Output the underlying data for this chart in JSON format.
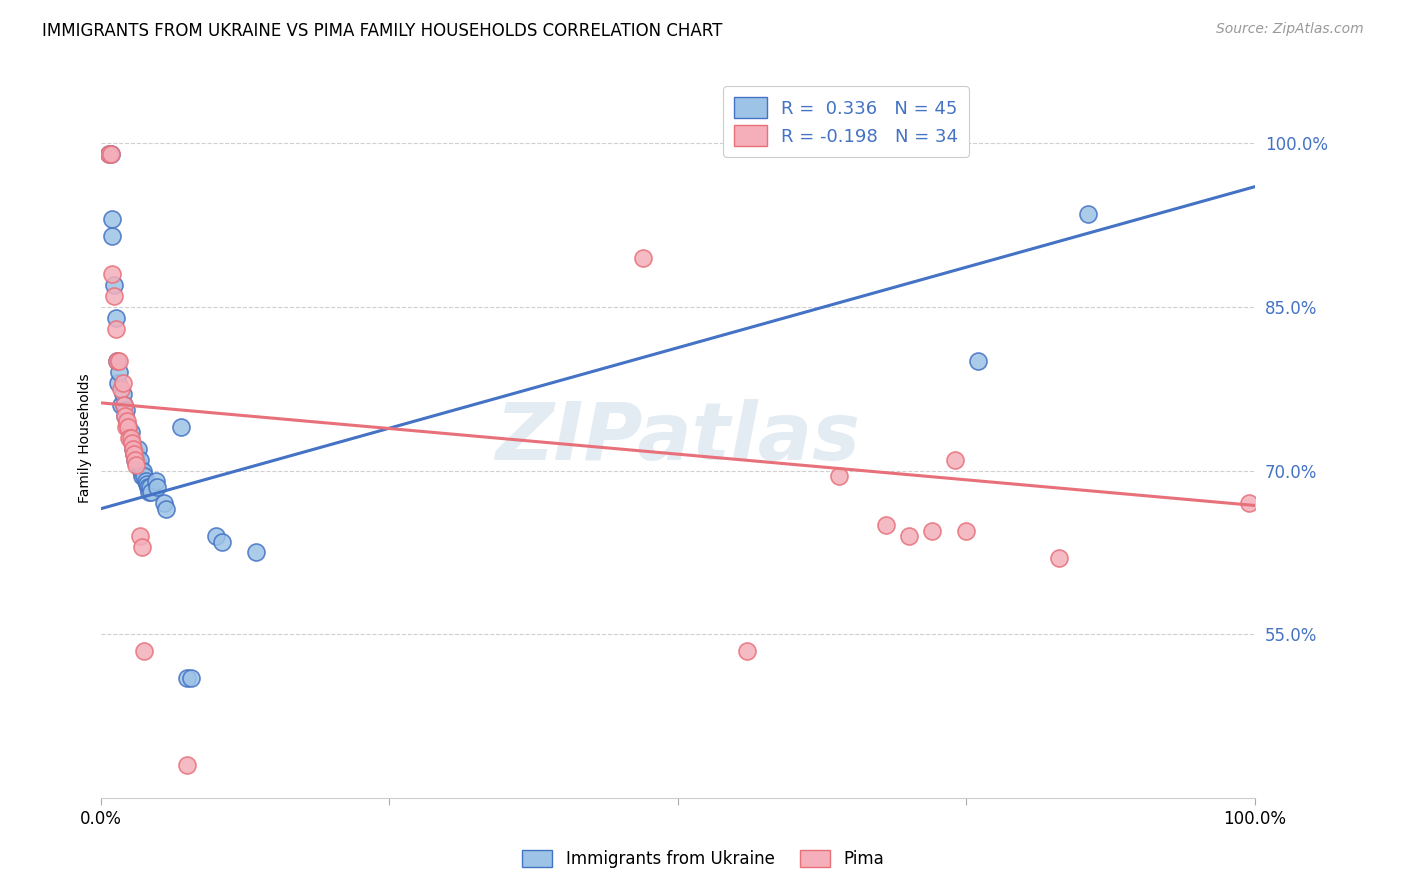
{
  "title": "IMMIGRANTS FROM UKRAINE VS PIMA FAMILY HOUSEHOLDS CORRELATION CHART",
  "source": "Source: ZipAtlas.com",
  "ylabel": "Family Households",
  "ytick_labels": [
    "55.0%",
    "70.0%",
    "85.0%",
    "100.0%"
  ],
  "ytick_values": [
    0.55,
    0.7,
    0.85,
    1.0
  ],
  "xlim": [
    0.0,
    1.0
  ],
  "ylim": [
    0.4,
    1.06
  ],
  "legend_line1": "R =  0.336   N = 45",
  "legend_line2": "R = -0.198   N = 34",
  "watermark": "ZIPatlas",
  "blue_color": "#4472C4",
  "pink_color": "#E8707A",
  "blue_fill": "#9DC3E6",
  "pink_fill": "#F4AFBA",
  "blue_scatter": [
    [
      0.007,
      0.99
    ],
    [
      0.009,
      0.99
    ],
    [
      0.01,
      0.93
    ],
    [
      0.01,
      0.915
    ],
    [
      0.012,
      0.87
    ],
    [
      0.013,
      0.84
    ],
    [
      0.014,
      0.8
    ],
    [
      0.015,
      0.78
    ],
    [
      0.016,
      0.79
    ],
    [
      0.018,
      0.76
    ],
    [
      0.019,
      0.77
    ],
    [
      0.02,
      0.76
    ],
    [
      0.021,
      0.75
    ],
    [
      0.022,
      0.755
    ],
    [
      0.024,
      0.74
    ],
    [
      0.026,
      0.735
    ],
    [
      0.028,
      0.72
    ],
    [
      0.029,
      0.715
    ],
    [
      0.03,
      0.71
    ],
    [
      0.031,
      0.715
    ],
    [
      0.032,
      0.72
    ],
    [
      0.033,
      0.705
    ],
    [
      0.034,
      0.71
    ],
    [
      0.035,
      0.7
    ],
    [
      0.036,
      0.695
    ],
    [
      0.037,
      0.7
    ],
    [
      0.038,
      0.695
    ],
    [
      0.039,
      0.69
    ],
    [
      0.04,
      0.688
    ],
    [
      0.041,
      0.685
    ],
    [
      0.042,
      0.68
    ],
    [
      0.043,
      0.685
    ],
    [
      0.044,
      0.68
    ],
    [
      0.048,
      0.69
    ],
    [
      0.049,
      0.685
    ],
    [
      0.055,
      0.67
    ],
    [
      0.057,
      0.665
    ],
    [
      0.07,
      0.74
    ],
    [
      0.075,
      0.51
    ],
    [
      0.078,
      0.51
    ],
    [
      0.1,
      0.64
    ],
    [
      0.105,
      0.635
    ],
    [
      0.135,
      0.625
    ],
    [
      0.76,
      0.8
    ],
    [
      0.855,
      0.935
    ]
  ],
  "pink_scatter": [
    [
      0.007,
      0.99
    ],
    [
      0.009,
      0.99
    ],
    [
      0.01,
      0.88
    ],
    [
      0.012,
      0.86
    ],
    [
      0.013,
      0.83
    ],
    [
      0.014,
      0.8
    ],
    [
      0.016,
      0.8
    ],
    [
      0.018,
      0.775
    ],
    [
      0.019,
      0.78
    ],
    [
      0.02,
      0.76
    ],
    [
      0.021,
      0.75
    ],
    [
      0.022,
      0.74
    ],
    [
      0.023,
      0.745
    ],
    [
      0.024,
      0.74
    ],
    [
      0.025,
      0.73
    ],
    [
      0.026,
      0.73
    ],
    [
      0.027,
      0.725
    ],
    [
      0.028,
      0.72
    ],
    [
      0.029,
      0.715
    ],
    [
      0.03,
      0.71
    ],
    [
      0.031,
      0.705
    ],
    [
      0.034,
      0.64
    ],
    [
      0.036,
      0.63
    ],
    [
      0.038,
      0.535
    ],
    [
      0.075,
      0.43
    ],
    [
      0.47,
      0.895
    ],
    [
      0.56,
      0.535
    ],
    [
      0.64,
      0.695
    ],
    [
      0.68,
      0.65
    ],
    [
      0.7,
      0.64
    ],
    [
      0.72,
      0.645
    ],
    [
      0.74,
      0.71
    ],
    [
      0.75,
      0.645
    ],
    [
      0.83,
      0.62
    ],
    [
      0.995,
      0.67
    ]
  ],
  "blue_line": {
    "x0": 0.0,
    "y0": 0.665,
    "x1": 1.0,
    "y1": 0.96
  },
  "pink_line": {
    "x0": 0.0,
    "y0": 0.762,
    "x1": 1.0,
    "y1": 0.668
  },
  "title_fontsize": 12,
  "source_fontsize": 10,
  "axis_label_fontsize": 10,
  "tick_fontsize": 12,
  "legend_fontsize": 13
}
